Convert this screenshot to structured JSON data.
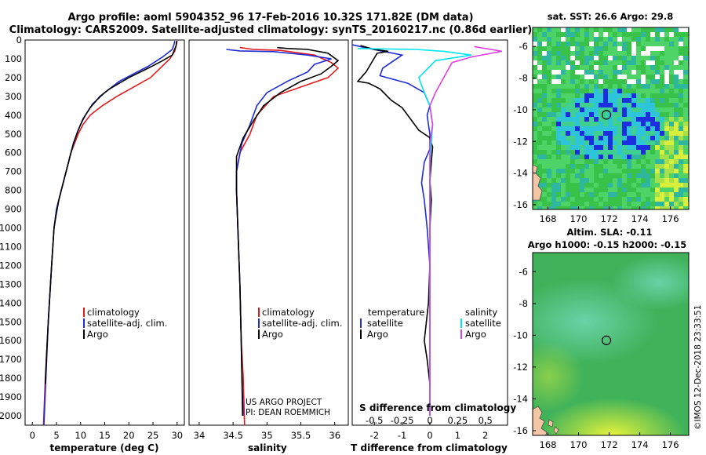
{
  "header": {
    "line1": "Argo profile: aoml 5904352_96 17-Feb-2016 10.32S 171.82E (DM data)",
    "line2": "Climatology: CARS2009. Satellite-adjusted climatology: synTS_20160217.nc (0.86d earlier)"
  },
  "colors": {
    "climatology": "#e41a1c",
    "satellite": "#1f2bd6",
    "argo": "#000000",
    "sat_salinity": "#00e5ee",
    "argo_salinity": "#e040e0"
  },
  "depth_axis": {
    "min": 0,
    "max": 2050,
    "ticks": [
      0,
      100,
      200,
      300,
      400,
      500,
      600,
      700,
      800,
      900,
      1000,
      1100,
      1200,
      1300,
      1400,
      1500,
      1600,
      1700,
      1800,
      1900,
      2000
    ]
  },
  "chart_data": [
    {
      "type": "line",
      "name": "temperature-profile",
      "xlabel": "temperature (deg C)",
      "xlim": [
        -1.5,
        31.5
      ],
      "xticks": [
        "0",
        "5",
        "10",
        "15",
        "20",
        "25",
        "30"
      ],
      "xtick_values": [
        0,
        5,
        10,
        15,
        20,
        25,
        30
      ],
      "legend": [
        "climatology",
        "satellite-adj. clim.",
        "Argo"
      ],
      "series": [
        {
          "name": "climatology",
          "color": "#e41a1c",
          "points": [
            [
              30,
              5
            ],
            [
              29.8,
              30
            ],
            [
              29.5,
              60
            ],
            [
              28.5,
              100
            ],
            [
              26.5,
              150
            ],
            [
              24.5,
              200
            ],
            [
              21,
              250
            ],
            [
              17.5,
              300
            ],
            [
              14.5,
              350
            ],
            [
              12,
              400
            ],
            [
              10.5,
              450
            ],
            [
              9.5,
              500
            ],
            [
              8,
              600
            ],
            [
              7,
              700
            ],
            [
              6,
              800
            ],
            [
              5,
              900
            ],
            [
              4.5,
              1000
            ],
            [
              4,
              1200
            ],
            [
              3.3,
              1500
            ],
            [
              2.7,
              1800
            ],
            [
              2.3,
              2050
            ]
          ]
        },
        {
          "name": "satellite-adj. clim.",
          "color": "#1f2bd6",
          "points": [
            [
              29.5,
              5
            ],
            [
              29.4,
              20
            ],
            [
              29,
              50
            ],
            [
              27,
              90
            ],
            [
              24,
              140
            ],
            [
              21,
              180
            ],
            [
              18,
              220
            ],
            [
              15,
              280
            ],
            [
              12.5,
              340
            ],
            [
              11,
              400
            ],
            [
              10,
              450
            ],
            [
              9.2,
              500
            ],
            [
              8,
              600
            ],
            [
              7,
              700
            ],
            [
              6,
              800
            ],
            [
              5,
              900
            ],
            [
              4.5,
              1000
            ],
            [
              4,
              1200
            ],
            [
              3.3,
              1500
            ],
            [
              2.8,
              1800
            ],
            [
              2.4,
              2050
            ]
          ]
        },
        {
          "name": "Argo",
          "color": "#000000",
          "points": [
            [
              29.9,
              5
            ],
            [
              29.8,
              30
            ],
            [
              29,
              80
            ],
            [
              27,
              110
            ],
            [
              24,
              150
            ],
            [
              20,
              200
            ],
            [
              16,
              260
            ],
            [
              14,
              300
            ],
            [
              12,
              360
            ],
            [
              10.5,
              420
            ],
            [
              9.5,
              480
            ],
            [
              8.5,
              550
            ],
            [
              7.5,
              650
            ],
            [
              6.5,
              750
            ],
            [
              5.5,
              850
            ],
            [
              5,
              920
            ],
            [
              4.5,
              1000
            ],
            [
              4,
              1200
            ],
            [
              3.3,
              1500
            ],
            [
              2.9,
              1700
            ],
            [
              2.7,
              1830
            ]
          ]
        }
      ]
    },
    {
      "type": "line",
      "name": "salinity-profile",
      "xlabel": "salinity",
      "xlim": [
        33.85,
        36.2
      ],
      "xticks": [
        "34",
        "34.5",
        "35",
        "35.5",
        "36"
      ],
      "xtick_values": [
        34,
        34.5,
        35,
        35.5,
        36
      ],
      "legend": [
        "climatology",
        "satellite-adj. clim.",
        "Argo"
      ],
      "annotation_lines": [
        "US ARGO PROJECT",
        "PI: DEAN ROEMMICH"
      ],
      "series": [
        {
          "name": "climatology",
          "color": "#e41a1c",
          "points": [
            [
              34.6,
              40
            ],
            [
              34.8,
              50
            ],
            [
              35.2,
              55
            ],
            [
              35.7,
              80
            ],
            [
              35.95,
              120
            ],
            [
              36.05,
              150
            ],
            [
              35.9,
              200
            ],
            [
              35.5,
              250
            ],
            [
              35.1,
              300
            ],
            [
              34.85,
              400
            ],
            [
              34.75,
              500
            ],
            [
              34.6,
              600
            ],
            [
              34.55,
              700
            ],
            [
              34.55,
              800
            ],
            [
              34.57,
              1000
            ],
            [
              34.6,
              1300
            ],
            [
              34.62,
              1600
            ],
            [
              34.65,
              1800
            ],
            [
              34.67,
              2050
            ]
          ]
        },
        {
          "name": "satellite-adj. clim.",
          "color": "#1f2bd6",
          "points": [
            [
              34.4,
              50
            ],
            [
              34.6,
              58
            ],
            [
              35.1,
              62
            ],
            [
              35.6,
              80
            ],
            [
              35.95,
              100
            ],
            [
              35.7,
              130
            ],
            [
              35.6,
              170
            ],
            [
              35.3,
              220
            ],
            [
              35,
              280
            ],
            [
              34.85,
              350
            ],
            [
              34.75,
              450
            ],
            [
              34.63,
              550
            ],
            [
              34.55,
              700
            ],
            [
              34.55,
              800
            ],
            [
              34.57,
              1000
            ],
            [
              34.6,
              1300
            ],
            [
              34.62,
              1600
            ],
            [
              34.63,
              1800
            ],
            [
              34.65,
              2000
            ]
          ]
        },
        {
          "name": "Argo",
          "color": "#000000",
          "points": [
            [
              35.15,
              40
            ],
            [
              35.3,
              45
            ],
            [
              35.6,
              50
            ],
            [
              35.9,
              70
            ],
            [
              36.05,
              110
            ],
            [
              35.95,
              140
            ],
            [
              35.8,
              180
            ],
            [
              35.5,
              220
            ],
            [
              35.2,
              280
            ],
            [
              34.95,
              350
            ],
            [
              34.8,
              430
            ],
            [
              34.65,
              520
            ],
            [
              34.55,
              620
            ],
            [
              34.55,
              800
            ],
            [
              34.57,
              1000
            ],
            [
              34.6,
              1300
            ],
            [
              34.62,
              1600
            ],
            [
              34.63,
              1800
            ],
            [
              34.64,
              2000
            ]
          ]
        }
      ]
    },
    {
      "type": "line",
      "name": "difference-profile",
      "xlabel": "T difference from climatology",
      "xlabel2": "S difference from climatology",
      "xlim": [
        -2.8,
        2.8
      ],
      "xticks": [
        "-2",
        "-1",
        "0",
        "1",
        "2"
      ],
      "xtick_values": [
        -2,
        -1,
        0,
        1,
        2
      ],
      "s_ticks": [
        "-0.5",
        "-0.25",
        "0",
        "0.25",
        "0.5"
      ],
      "legend_temperature_title": "temperature",
      "legend_salinity_title": "salinity",
      "legend": [
        "satellite",
        "Argo",
        "satellite",
        "Argo"
      ],
      "series": [
        {
          "name": "satellite (T)",
          "color": "#1f2bd6",
          "points": [
            [
              -2.8,
              25
            ],
            [
              -2.2,
              45
            ],
            [
              -1,
              80
            ],
            [
              -1.7,
              150
            ],
            [
              -1.8,
              190
            ],
            [
              -0.8,
              230
            ],
            [
              -0.2,
              280
            ],
            [
              0,
              350
            ],
            [
              -0.1,
              400
            ],
            [
              -0.05,
              450
            ],
            [
              0,
              500
            ],
            [
              0,
              580
            ],
            [
              -0.2,
              650
            ],
            [
              -0.3,
              760
            ],
            [
              -0.2,
              850
            ],
            [
              -0.1,
              1000
            ],
            [
              0,
              1200
            ],
            [
              0,
              1500
            ],
            [
              0,
              2000
            ]
          ]
        },
        {
          "name": "Argo (T)",
          "color": "#000000",
          "points": [
            [
              -2.5,
              30
            ],
            [
              -2,
              50
            ],
            [
              -1.5,
              60
            ],
            [
              -1.9,
              70
            ],
            [
              -2.3,
              170
            ],
            [
              -2.6,
              220
            ],
            [
              -2.2,
              230
            ],
            [
              -1.8,
              260
            ],
            [
              -1.4,
              320
            ],
            [
              -1,
              360
            ],
            [
              -0.7,
              420
            ],
            [
              -0.4,
              480
            ],
            [
              0,
              520
            ],
            [
              0.1,
              570
            ],
            [
              0.05,
              650
            ],
            [
              0,
              750
            ],
            [
              0.05,
              850
            ],
            [
              0,
              1000
            ],
            [
              0,
              1200
            ],
            [
              -0.05,
              1400
            ],
            [
              -0.2,
              1600
            ],
            [
              -0.1,
              1700
            ],
            [
              0,
              1830
            ]
          ]
        },
        {
          "name": "satellite (S)",
          "color": "#00e5ee",
          "points": [
            [
              -2.6,
              45
            ],
            [
              -0.5,
              50
            ],
            [
              0.5,
              60
            ],
            [
              1.5,
              80
            ],
            [
              0.2,
              110
            ],
            [
              -0.4,
              200
            ],
            [
              -0.2,
              280
            ],
            [
              0,
              350
            ],
            [
              0.1,
              450
            ],
            [
              0.05,
              550
            ],
            [
              0,
              650
            ],
            [
              0,
              800
            ],
            [
              0,
              1000
            ],
            [
              0,
              1500
            ],
            [
              0,
              2000
            ]
          ]
        },
        {
          "name": "Argo (S)",
          "color": "#e040e0",
          "points": [
            [
              1.6,
              35
            ],
            [
              2.6,
              60
            ],
            [
              1.5,
              90
            ],
            [
              0.8,
              120
            ],
            [
              0.5,
              200
            ],
            [
              0.2,
              280
            ],
            [
              0,
              350
            ],
            [
              0.1,
              450
            ],
            [
              0,
              550
            ],
            [
              0,
              700
            ],
            [
              0,
              1000
            ],
            [
              0,
              1500
            ],
            [
              0,
              2000
            ]
          ]
        }
      ]
    },
    {
      "type": "heatmap",
      "name": "sst-map",
      "title": "sat. SST: 26.6 Argo: 29.8",
      "xlim": [
        167,
        177.2
      ],
      "ylim": [
        -16.3,
        -4.8
      ],
      "xticks": [
        "168",
        "170",
        "172",
        "174",
        "176"
      ],
      "xtick_values": [
        168,
        170,
        172,
        174,
        176
      ],
      "yticks": [
        "-6",
        "-8",
        "-10",
        "-12",
        "-14",
        "-16"
      ],
      "ytick_values": [
        -6,
        -8,
        -10,
        -12,
        -14,
        -16
      ],
      "argo_position": [
        171.82,
        -10.32
      ]
    },
    {
      "type": "heatmap",
      "name": "sla-map",
      "title": "Altim. SLA: -0.11",
      "subtitle": "Argo h1000: -0.15 h2000: -0.15",
      "xlim": [
        167,
        177.2
      ],
      "ylim": [
        -16.3,
        -4.8
      ],
      "xticks": [
        "168",
        "170",
        "172",
        "174",
        "176"
      ],
      "xtick_values": [
        168,
        170,
        172,
        174,
        176
      ],
      "yticks": [
        "-6",
        "-8",
        "-10",
        "-12",
        "-14",
        "-16"
      ],
      "ytick_values": [
        -6,
        -8,
        -10,
        -12,
        -14,
        -16
      ],
      "argo_position": [
        171.82,
        -10.32
      ]
    }
  ],
  "credit": "©IMOS 12-Dec-2018 23:33:51"
}
